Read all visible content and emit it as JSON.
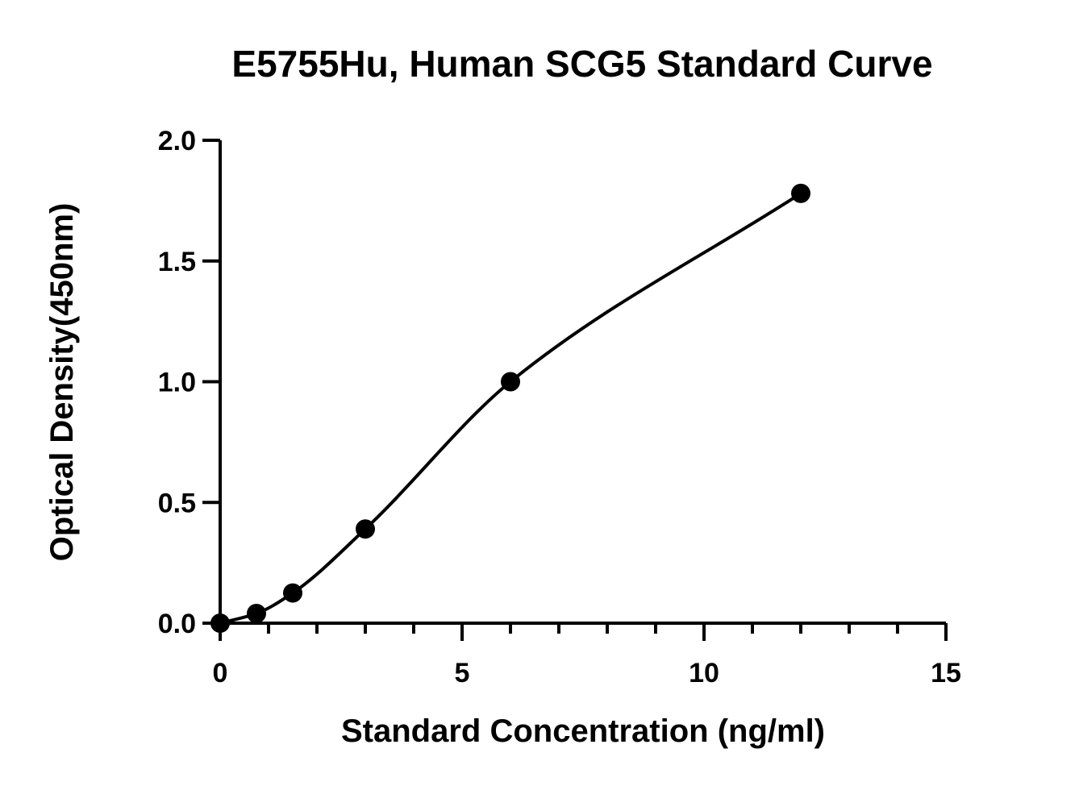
{
  "chart_data": {
    "type": "scatter",
    "title": "E5755Hu, Human SCG5 Standard Curve",
    "xlabel": "Standard Concentration (ng/ml)",
    "ylabel": "Optical Density(450nm)",
    "xlim": [
      0,
      15
    ],
    "ylim": [
      0,
      2.0
    ],
    "x_ticks": [
      "0",
      "5",
      "10",
      "15"
    ],
    "y_ticks": [
      "0.0",
      "0.5",
      "1.0",
      "1.5",
      "2.0"
    ],
    "grid": false,
    "series": [
      {
        "x": [
          0,
          0.75,
          1.5,
          3,
          6,
          12
        ],
        "y": [
          0.0,
          0.04,
          0.125,
          0.39,
          1.0,
          1.78
        ],
        "fit": "4PL",
        "color": "#000000"
      }
    ]
  }
}
